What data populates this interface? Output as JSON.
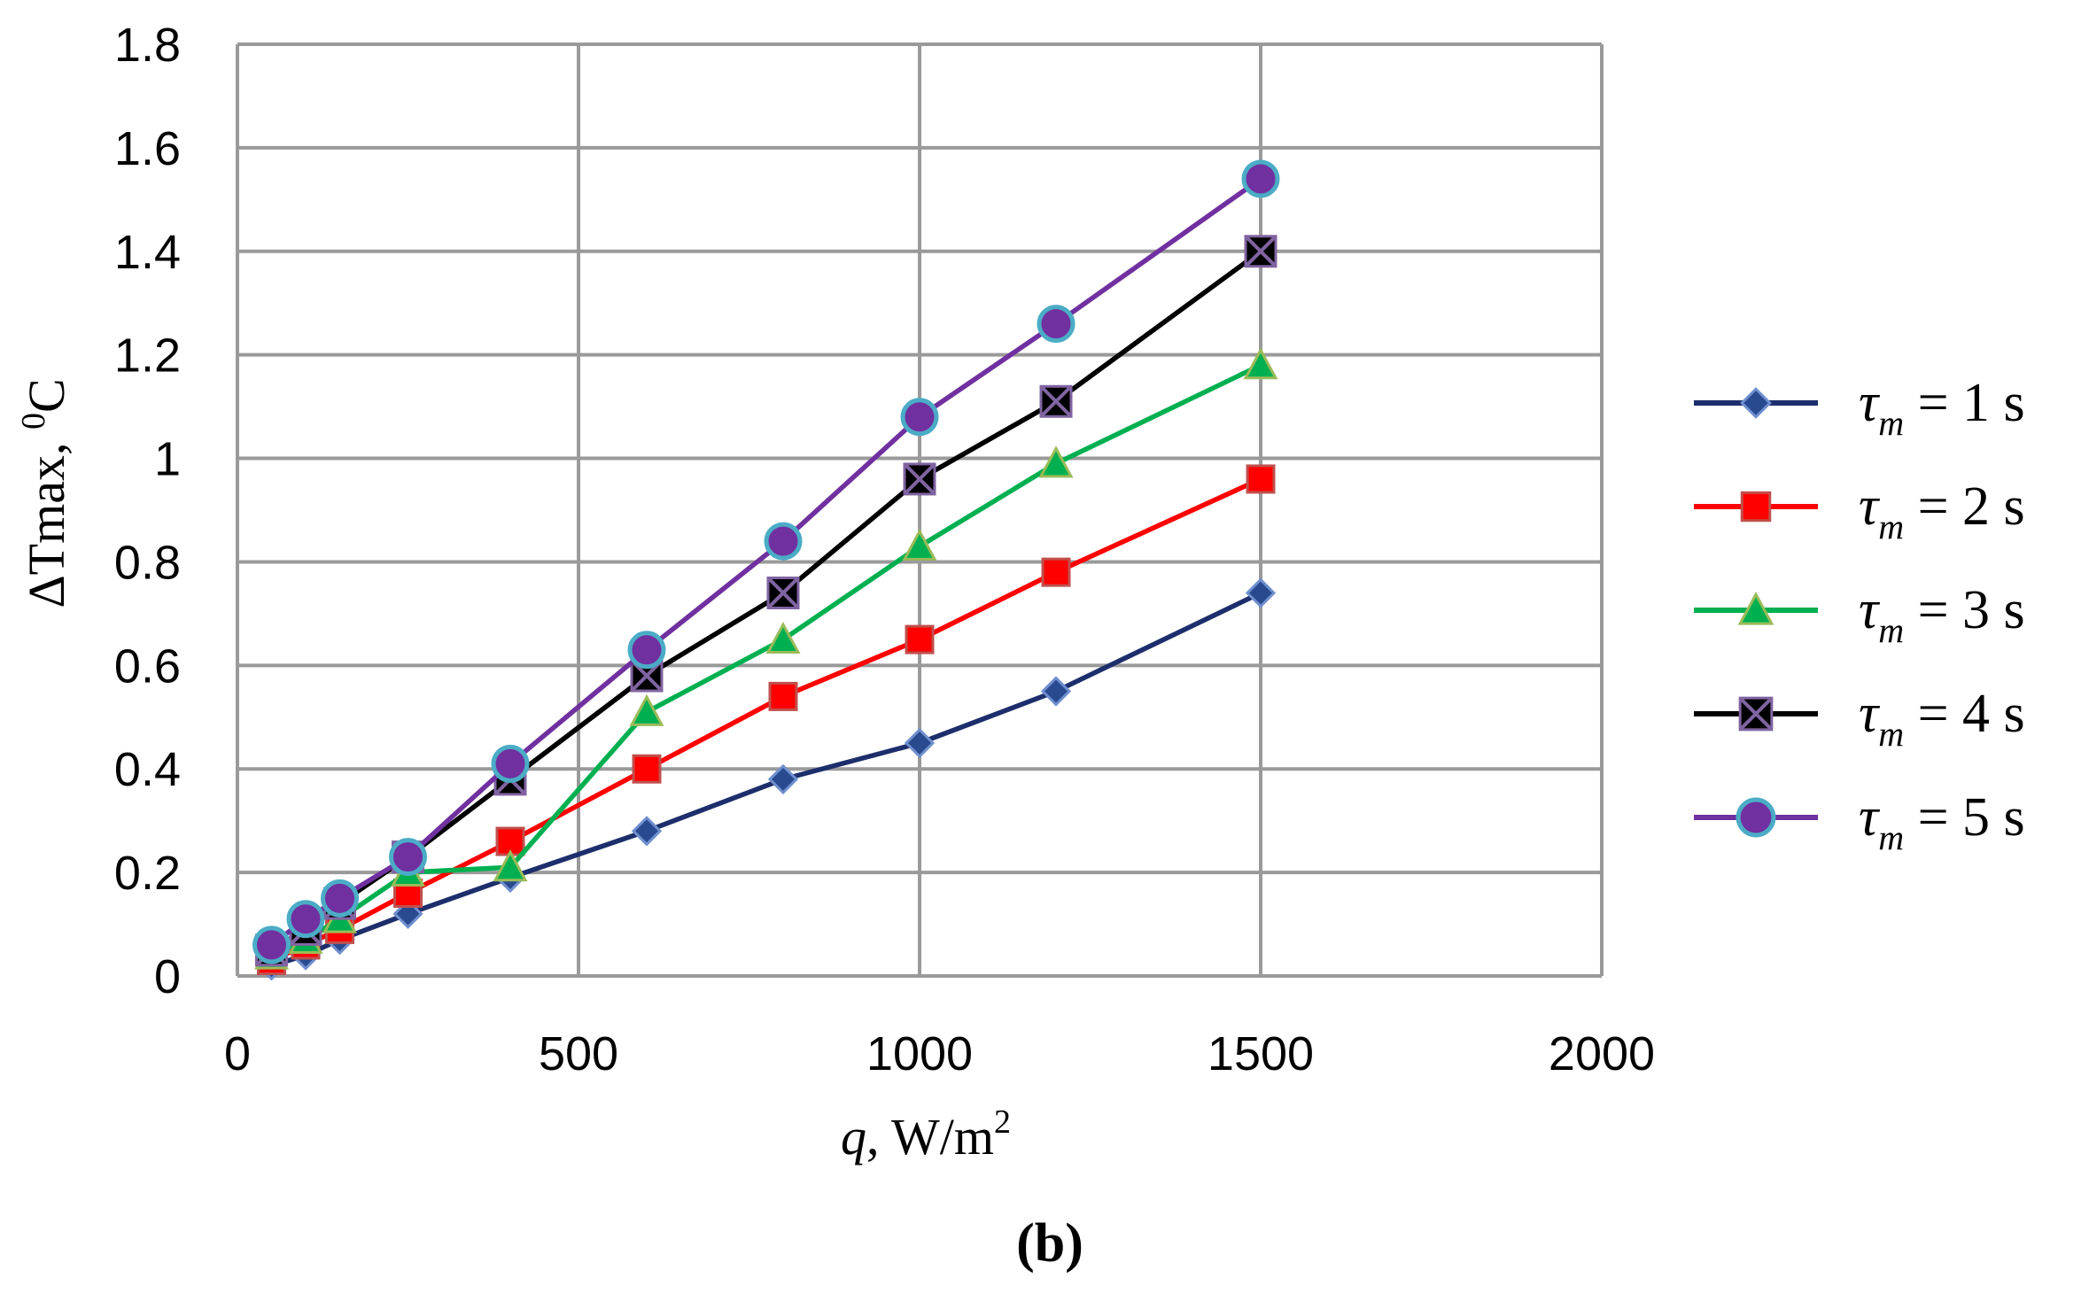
{
  "chart_data": {
    "type": "line",
    "title": "",
    "xlabel": {
      "var": "q",
      "rest": ", W/m",
      "sup": "2"
    },
    "ylabel": {
      "main": "ΔTmax, ",
      "sup": "0",
      "unit": "C"
    },
    "xlim": [
      0,
      2000
    ],
    "ylim": [
      0,
      1.8
    ],
    "xticks": [
      0,
      500,
      1000,
      1500,
      2000
    ],
    "yticks": [
      0,
      0.2,
      0.4,
      0.6,
      0.8,
      1,
      1.2,
      1.4,
      1.6,
      1.8
    ],
    "xtick_labels": [
      "0",
      "500",
      "1000",
      "1500",
      "2000"
    ],
    "ytick_labels": [
      "0",
      "0.2",
      "0.4",
      "0.6",
      "0.8",
      "1",
      "1.2",
      "1.4",
      "1.6",
      "1.8"
    ],
    "grid": true,
    "legend_position": "right",
    "x": [
      50,
      100,
      150,
      250,
      400,
      600,
      800,
      1000,
      1200,
      1500
    ],
    "series": [
      {
        "name": "τm = 1 s",
        "sym": "τ",
        "sub": "m",
        "eq": " = 1 s",
        "color": "#1c2e6b",
        "marker": "diamond",
        "marker_fill": "#2a4a8f",
        "marker_stroke": "#6f8fcf",
        "values": [
          0.02,
          0.04,
          0.07,
          0.12,
          0.19,
          0.28,
          0.38,
          0.45,
          0.55,
          0.74
        ]
      },
      {
        "name": "τm = 2 s",
        "sym": "τ",
        "sub": "m",
        "eq": " = 2 s",
        "color": "#ff0000",
        "marker": "square",
        "marker_fill": "#ff0000",
        "marker_stroke": "#c0504d",
        "values": [
          0.03,
          0.06,
          0.09,
          0.16,
          0.26,
          0.4,
          0.54,
          0.65,
          0.78,
          0.96
        ]
      },
      {
        "name": "τm = 3 s",
        "sym": "τ",
        "sub": "m",
        "eq": " = 3 s",
        "color": "#00b050",
        "marker": "triangle",
        "marker_fill": "#00b050",
        "marker_stroke": "#9bbb59",
        "values": [
          0.04,
          0.07,
          0.11,
          0.2,
          0.21,
          0.51,
          0.65,
          0.83,
          0.99,
          1.18
        ]
      },
      {
        "name": "τm = 4 s",
        "sym": "τ",
        "sub": "m",
        "eq": " = 4 s",
        "color": "#000000",
        "marker": "x-square",
        "marker_fill": "#000000",
        "marker_stroke": "#8064a2",
        "values": [
          0.05,
          0.09,
          0.14,
          0.23,
          0.38,
          0.58,
          0.74,
          0.96,
          1.11,
          1.4
        ]
      },
      {
        "name": "τm = 5 s",
        "sym": "τ",
        "sub": "m",
        "eq": " = 5 s",
        "color": "#7030a0",
        "marker": "circle",
        "marker_fill": "#7030a0",
        "marker_stroke": "#4bacc6",
        "values": [
          0.06,
          0.11,
          0.15,
          0.23,
          0.41,
          0.63,
          0.84,
          1.08,
          1.26,
          1.54
        ]
      }
    ]
  },
  "caption": "(b)"
}
